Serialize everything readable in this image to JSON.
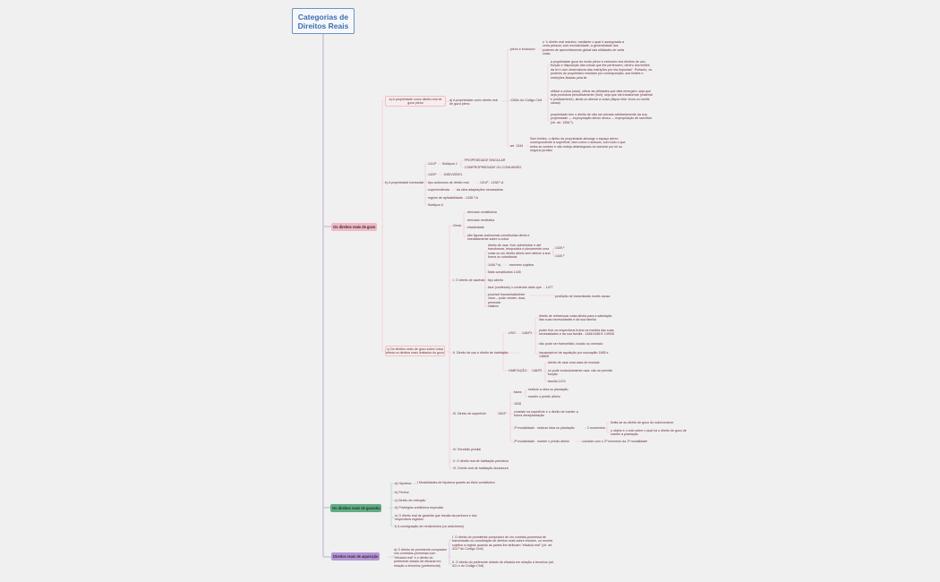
{
  "root": {
    "title": "Categorias de Direitos Reais"
  },
  "gozo": {
    "label": "Os direitos reais de gozo",
    "a": {
      "label": "a) A propriedade como direito real de gozo pleno",
      "sub": "a) A propriedade como direito real de gozo pleno",
      "pleno": "pleno e exclusivo",
      "pleno_text": "o \"o direito real máximo, mediante o qual é assegurada a certa pessoa, com exclusividade, a generalidade dos poderes de aproveitamento global das utilidades de certa coisa",
      "art1305": "1305o do Código Civil",
      "t1": "a propriedade goza do modo pleno e exclusivo dos direitos de uso, fruição e disposição das coisas que lhe pertencem, dentro dos limites da lei e com observância das restrições por ela impostas\". Portanto, os poderes do proprietário resultam por contraposição, aos limites e restrições fixadas pela lei.",
      "t2": "utilizar a coisa (usar), retirar as utilidades que dela emergem, seja que seja produtora periodicamente (fruir), seja que ela transformar (material e juridicamente), ainda ou alienar a coisa (dispor inter vivos ou mortis causa)",
      "t3": "propriedade tem o direito de não ser privado arbitrariamente da sua propriedade — expropriação stricto sensu — expropriação de sacrifício (cfr. art. 1308.º).",
      "art1344": "art. 1344",
      "t4": "Sem limites, o direito de propriedade abrange o espaço aéreo correspondente à superfície, bem como o subsolo, com tudo o que neles se contém e não esteja desintegrado do domínio por lei ou negócio jurídico"
    },
    "b": {
      "label": "b) A propriedade horizontal",
      "i1": "1414º",
      "i1a": "Subtipos 1",
      "i1b": "PROPRIEDADE SINGULAR",
      "i1c": "COMPROPRIEDADE OU COMUNHÃO",
      "i2": "1420º",
      "i2a": "INDIVISÍVEL",
      "i3": "tipo autónomo de direito real",
      "i3a": "1414º - 1438.º-A",
      "i4": "superveniência",
      "i4a": "da obra adaptações necessárias",
      "i5": "regime de aplicabilidade - 1438.º-A",
      "i6": "Subtipos II"
    },
    "c": {
      "label": "c) Os direitos reais de gozo sobre coisa alheia ou direitos reais limitados do gozo",
      "geral": "Geral",
      "g": [
        "derivado constitutiva",
        "derivado restitutiva",
        "elasticidade",
        "são figuras autónomas constituídas direta e imediatamente sobre a coisa"
      ],
      "usufruto": "I. O direito de usufruto",
      "u1": "direito de usar, fruir, administrar e até transformar, temporária e plenamente uma coisa ou um direito alheio sem alterar a sua forma ou substância",
      "u1a": "1439.º",
      "u1b": "1440.º",
      "u2": "1446.º a)",
      "u2a": "menores sujeitos",
      "u3": "Mais constituídos 1445",
      "u4": "tipo aberto",
      "u5": "face (conteúdo) o conteúdo dado que ... 1477",
      "u6": "possível transmissão/inter vivos – pode vender, doar, permutar",
      "u6a": "proibição de transmissão mortis causa",
      "u7": "vitalício",
      "uso_hab": "II. Direito de uso e direito de habitação",
      "uso": "USO",
      "uso_art": "1484º1",
      "uso_t": [
        "direito de retirar/usar coisa alheia para a satisfação das suas necessidades e da sua família",
        "poder fruir os respectivos frutos na medida das suas necessidades e da sua família - 1484/1486 E 1490/8",
        "não pode ser transmitido, locado ou onerado",
        "insusceptível de aquisição por usucapião 1485 e 1486/8"
      ],
      "hab": "HABITAÇÃO",
      "hab_art": "1484º2",
      "hab_t": [
        "direito de usar uma casa de morada",
        "só pode exclusivamente usar, não se permite fruição",
        "família 1474"
      ],
      "sup": "III. Direito de superfície",
      "sup_art": "1524º",
      "fases": "fases",
      "fases_t": [
        "realizar a obra ou plantação",
        "manter o prédio alheio"
      ],
      "s1528": "1528",
      "s_cons": "consiste na superfície e o direito de manter a futura obra/plantação",
      "mod1": "1ª modalidade - realizar obra ou plantação",
      "mod1a": "2 momentos",
      "mod1_t": [
        "limita-se ao direito de gozo do solo/construir",
        "o objeto é o solo sobre o qual há o direito de gozo de manter a plantação"
      ],
      "mod2": "2ª modalidade - manter o prédio alheio",
      "mod2a": "coincide com o 2º momento da 1ª modalidade",
      "iv": "IV. Servidão predial",
      "v": "V. O direito real de habitação periódica",
      "vi": "VI. Direito real de habitação duradoura"
    }
  },
  "garantia": {
    "label": "Os direitos reais de garantia",
    "items": [
      "a) Hipoteca",
      "b) Penhor",
      "c) Direito de retenção",
      "d) Privilégios creditórios especiais",
      "e) O direito real de garantia que resulta da penhora e dos respectivos registos",
      "f) A consignação de rendimentos (ou antichrese)"
    ],
    "hipoteca_sub": "I Modalidades de hipoteca quanto ao título constitutivo"
  },
  "aquisicao": {
    "label": "Direitos reais de aquisição",
    "a": "a) O direito do promitente-comprador nos contratos-promessa com \"eficácia real\" e o direito do preferente dotado de eficácia em relação a terceiros (preferencial)",
    "i": "I. O direito do promitente-comprador de um contrato-promessa de transmissão ou constituição de direitos reais sobre imóveis, ou móveis sujeitos a registo quando as partes lhe atribuam \"eficácia real\" (cfr. art. 413.º do Código Civil)",
    "ii": "II. O direito do preferente dotado de eficácia em relação a terceiros (art. 421 e do Código Civil)"
  },
  "colors": {
    "gozo": "#f2b8c3",
    "garantia": "#5fae84",
    "aquisicao": "#b795d9",
    "root": "#3a6fb0"
  }
}
